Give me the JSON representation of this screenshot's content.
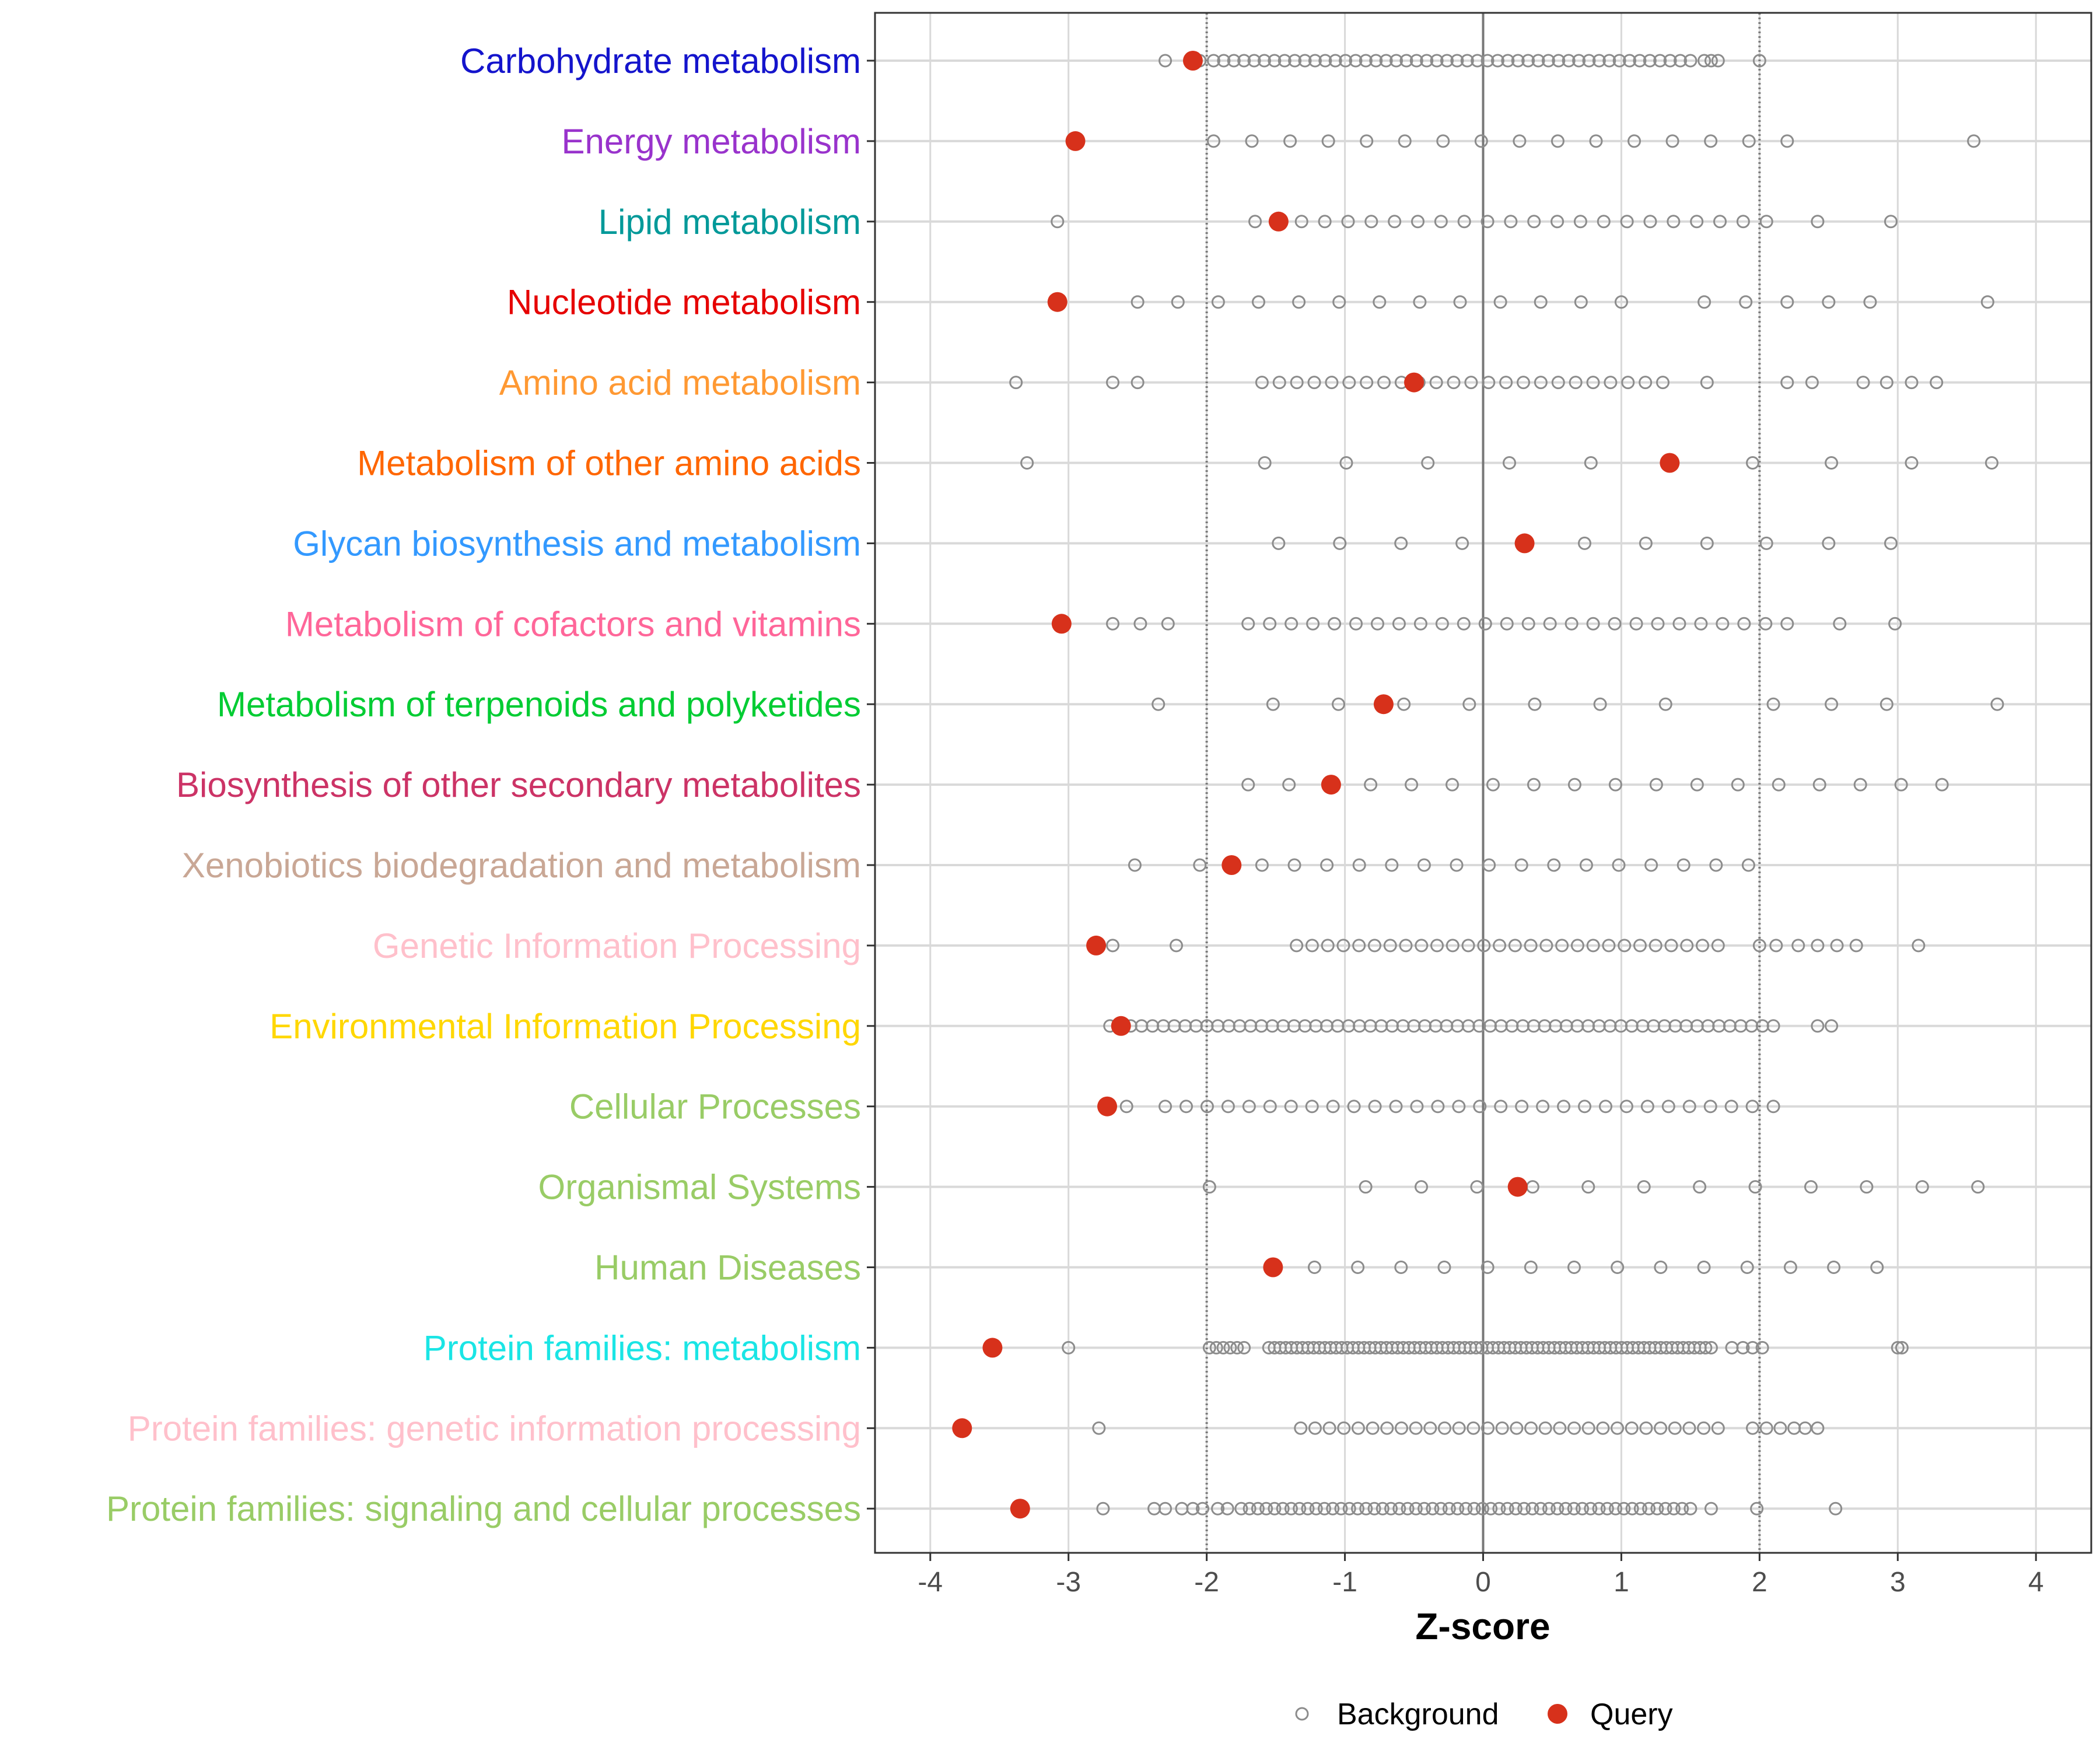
{
  "chart_data": {
    "type": "scatter",
    "xlabel": "Z-score",
    "ylabel": "",
    "xlim": [
      -4.4,
      4.4
    ],
    "x_ticks": [
      -4,
      -3,
      -2,
      -1,
      0,
      1,
      2,
      3,
      4
    ],
    "x_tick_labels": [
      "-4",
      "-3",
      "-2",
      "-1",
      "0",
      "1",
      "2",
      "3",
      "4"
    ],
    "vlines_dotted": [
      -2,
      2
    ],
    "vline_solid": 0,
    "legend": {
      "position": "bottom",
      "entries": [
        {
          "label": "Background",
          "marker": "open-circle",
          "color": "#8c8c8c"
        },
        {
          "label": "Query",
          "marker": "filled-circle",
          "color": "#d7311b"
        }
      ]
    },
    "categories": [
      {
        "label": "Carbohydrate metabolism",
        "color": "#1414cc",
        "query": -2.1,
        "background_range": [
          -1.95,
          1.5
        ],
        "background_n": 48,
        "background_extra": [
          -2.3,
          -2.05,
          1.6,
          1.65,
          1.7,
          2.0
        ]
      },
      {
        "label": "Energy metabolism",
        "color": "#9933cc",
        "query": -2.95,
        "background_range": [
          -1.95,
          2.2
        ],
        "background_n": 16,
        "background_extra": [
          3.55
        ]
      },
      {
        "label": "Lipid metabolism",
        "color": "#009999",
        "query": -1.48,
        "background_range": [
          -1.65,
          2.05
        ],
        "background_n": 23,
        "background_extra": [
          -3.08,
          2.42,
          2.95
        ]
      },
      {
        "label": "Nucleotide metabolism",
        "color": "#e60000",
        "query": -3.08,
        "background_range": [
          -2.5,
          1.0
        ],
        "background_n": 13,
        "background_extra": [
          1.6,
          1.9,
          2.2,
          2.5,
          2.8,
          3.65
        ]
      },
      {
        "label": "Amino acid metabolism",
        "color": "#ff9933",
        "query": -0.5,
        "background_range": [
          -1.6,
          1.3
        ],
        "background_n": 24,
        "background_extra": [
          -3.38,
          -2.68,
          -2.5,
          1.62,
          2.2,
          2.38,
          2.75,
          2.92,
          3.1,
          3.28
        ]
      },
      {
        "label": "Metabolism of other amino acids",
        "color": "#ff6600",
        "query": 1.35,
        "background_range": [
          -1.58,
          0.78
        ],
        "background_n": 5,
        "background_extra": [
          -3.3,
          1.95,
          2.52,
          3.1,
          3.68
        ]
      },
      {
        "label": "Glycan biosynthesis and metabolism",
        "color": "#3399ff",
        "query": 0.3,
        "background_range": [
          -1.48,
          1.62
        ],
        "background_n": 8,
        "background_extra": [
          2.05,
          2.5,
          2.95
        ]
      },
      {
        "label": "Metabolism of cofactors and vitamins",
        "color": "#ff6699",
        "query": -3.05,
        "background_range": [
          -1.7,
          2.2
        ],
        "background_n": 26,
        "background_extra": [
          -2.68,
          -2.48,
          -2.28,
          2.58,
          2.98
        ]
      },
      {
        "label": "Metabolism of terpenoids and polyketides",
        "color": "#00cc33",
        "query": -0.72,
        "background_range": [
          -1.52,
          1.32
        ],
        "background_n": 7,
        "background_extra": [
          -2.35,
          2.1,
          2.52,
          2.92,
          3.72
        ]
      },
      {
        "label": "Biosynthesis of other secondary metabolites",
        "color": "#cc3366",
        "query": -1.1,
        "background_range": [
          -1.7,
          3.32
        ],
        "background_n": 18,
        "background_extra": []
      },
      {
        "label": "Xenobiotics biodegradation and metabolism",
        "color": "#c9a795",
        "query": -1.82,
        "background_range": [
          -1.6,
          1.92
        ],
        "background_n": 16,
        "background_extra": [
          -2.52,
          -2.05
        ]
      },
      {
        "label": "Genetic Information Processing",
        "color": "#ffc0cb",
        "query": -2.8,
        "background_range": [
          -1.35,
          1.7
        ],
        "background_n": 28,
        "background_extra": [
          -2.68,
          -2.22,
          2.0,
          2.12,
          2.28,
          2.42,
          2.56,
          2.7,
          3.15
        ]
      },
      {
        "label": "Environmental Information Processing",
        "color": "#ffd700",
        "query": -2.62,
        "background_range": [
          -2.55,
          2.1
        ],
        "background_n": 60,
        "background_extra": [
          -2.7,
          2.42,
          2.52
        ]
      },
      {
        "label": "Cellular Processes",
        "color": "#99cc66",
        "query": -2.72,
        "background_range": [
          -2.3,
          2.1
        ],
        "background_n": 30,
        "background_extra": [
          -2.58
        ]
      },
      {
        "label": "Organismal Systems",
        "color": "#99cc66",
        "query": 0.25,
        "background_range": [
          -0.85,
          3.58
        ],
        "background_n": 12,
        "background_extra": [
          -1.98
        ]
      },
      {
        "label": "Human Diseases",
        "color": "#99cc66",
        "query": -1.52,
        "background_range": [
          -1.22,
          2.85
        ],
        "background_n": 14,
        "background_extra": []
      },
      {
        "label": "Protein families: metabolism",
        "color": "#1ae5e5",
        "query": -3.55,
        "background_range": [
          -1.55,
          1.65
        ],
        "background_n": 80,
        "background_extra": [
          -3.0,
          -1.98,
          -1.93,
          -1.88,
          -1.83,
          -1.78,
          -1.73,
          1.8,
          1.88,
          1.95,
          2.02,
          3.0,
          3.03
        ]
      },
      {
        "label": "Protein families: genetic information processing",
        "color": "#ffc0cb",
        "query": -3.77,
        "background_range": [
          -1.32,
          1.7
        ],
        "background_n": 30,
        "background_extra": [
          -2.78,
          1.95,
          2.05,
          2.15,
          2.25,
          2.33,
          2.42
        ]
      },
      {
        "label": "Protein families: signaling and cellular processes",
        "color": "#99cc66",
        "query": -3.35,
        "background_range": [
          -1.75,
          1.5
        ],
        "background_n": 55,
        "background_extra": [
          -2.75,
          -2.38,
          -2.3,
          -2.18,
          -2.1,
          -2.03,
          -1.92,
          -1.85,
          1.65,
          1.98,
          2.55
        ]
      }
    ]
  }
}
